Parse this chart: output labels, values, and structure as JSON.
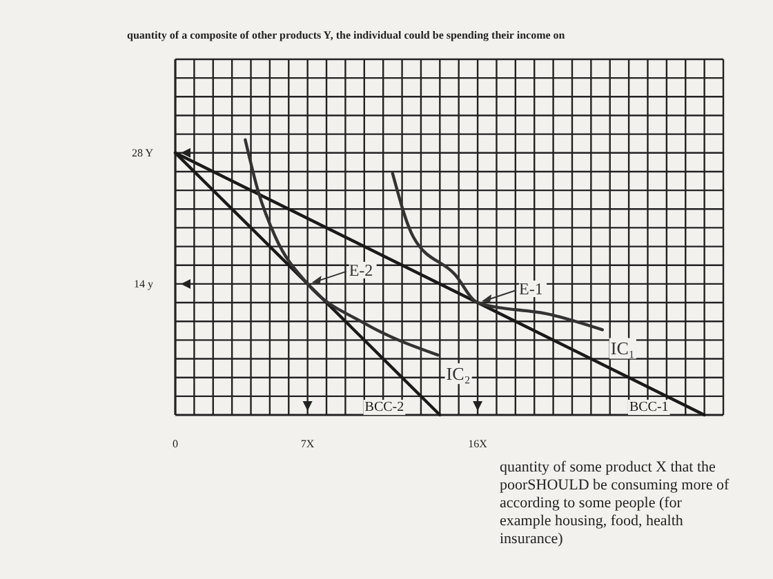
{
  "chart_data": {
    "type": "line",
    "ylabel": "quantity of a composite of other products  Y, the individual could be spending their income on",
    "xlabel": "quantity of some product X that the poorSHOULD be consuming more of according to some people (for example housing, food, health insurance)",
    "xlim": [
      0,
      29
    ],
    "ylim": [
      0,
      38
    ],
    "xticks": [
      {
        "value": 0,
        "label": "0"
      },
      {
        "value": 1,
        "label": null
      },
      {
        "value": 2,
        "label": null
      },
      {
        "value": 3,
        "label": null
      },
      {
        "value": 4,
        "label": null
      },
      {
        "value": 5,
        "label": null
      },
      {
        "value": 6,
        "label": null
      },
      {
        "value": 7,
        "label": "7X"
      },
      {
        "value": 8,
        "label": null
      },
      {
        "value": 9,
        "label": null
      },
      {
        "value": 10,
        "label": null
      },
      {
        "value": 11,
        "label": null
      },
      {
        "value": 12,
        "label": null
      },
      {
        "value": 13,
        "label": null
      },
      {
        "value": 14,
        "label": null
      },
      {
        "value": 15,
        "label": null
      },
      {
        "value": 16,
        "label": "16X"
      },
      {
        "value": 17,
        "label": null
      },
      {
        "value": 18,
        "label": null
      },
      {
        "value": 19,
        "label": null
      },
      {
        "value": 20,
        "label": null
      },
      {
        "value": 21,
        "label": null
      },
      {
        "value": 22,
        "label": null
      },
      {
        "value": 23,
        "label": null
      },
      {
        "value": 24,
        "label": null
      },
      {
        "value": 25,
        "label": null
      },
      {
        "value": 26,
        "label": null
      },
      {
        "value": 27,
        "label": null
      },
      {
        "value": 28,
        "label": null
      },
      {
        "value": 29,
        "label": null
      }
    ],
    "yticks": [
      {
        "value": 2,
        "label": null
      },
      {
        "value": 4,
        "label": null
      },
      {
        "value": 6,
        "label": null
      },
      {
        "value": 8,
        "label": null
      },
      {
        "value": 10,
        "label": null
      },
      {
        "value": 12,
        "label": null
      },
      {
        "value": 14,
        "label": "14 y"
      },
      {
        "value": 16,
        "label": null
      },
      {
        "value": 18,
        "label": null
      },
      {
        "value": 20,
        "label": null
      },
      {
        "value": 22,
        "label": null
      },
      {
        "value": 24,
        "label": null
      },
      {
        "value": 26,
        "label": null
      },
      {
        "value": 28,
        "label": "28 Y"
      },
      {
        "value": 30,
        "label": null
      },
      {
        "value": 32,
        "label": null
      },
      {
        "value": 34,
        "label": null
      },
      {
        "value": 36,
        "label": null
      },
      {
        "value": 38,
        "label": null
      }
    ],
    "grid": true,
    "series": [
      {
        "name": "BCC-1",
        "color": "#1a1a1a",
        "x": [
          0,
          28
        ],
        "values": [
          28,
          0
        ]
      },
      {
        "name": "BCC-2",
        "color": "#1a1a1a",
        "x": [
          0,
          14
        ],
        "values": [
          28,
          0
        ]
      },
      {
        "name": "IC₁",
        "color": "#333333",
        "x": [
          11.5,
          12.6,
          14.8,
          16,
          19.9,
          22.6
        ],
        "values": [
          25.8,
          19,
          15,
          12,
          10.7,
          9.1
        ]
      },
      {
        "name": "IC₂",
        "color": "#333333",
        "x": [
          3.7,
          4.4,
          5.3,
          7,
          10,
          13.9
        ],
        "values": [
          29.4,
          23.8,
          19,
          14,
          9.8,
          6.4
        ]
      }
    ],
    "annotations": [
      {
        "text": "E-2",
        "x": 7,
        "y": 14
      },
      {
        "text": "E-1",
        "x": 16,
        "y": 12
      }
    ]
  }
}
